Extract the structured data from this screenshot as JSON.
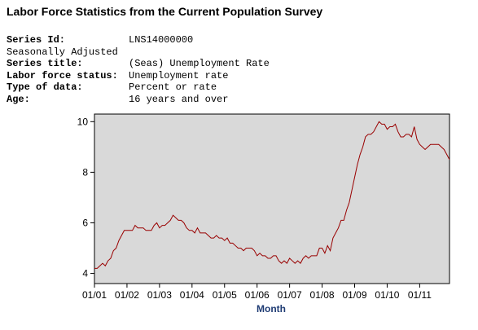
{
  "header": {
    "title": "Labor Force Statistics from the Current Population Survey"
  },
  "series_info": [
    {
      "label": "Series Id:",
      "value": "LNS14000000",
      "bold": true
    },
    {
      "label": "Seasonally Adjusted",
      "value": "",
      "bold": false
    },
    {
      "label": "Series title:",
      "value": "(Seas) Unemployment Rate",
      "bold": true
    },
    {
      "label": "Labor force status:",
      "value": "Unemployment rate",
      "bold": true
    },
    {
      "label": "Type of data:",
      "value": "Percent or rate",
      "bold": true
    },
    {
      "label": "Age:",
      "value": "16 years and over",
      "bold": true
    }
  ],
  "chart_data": {
    "type": "line",
    "title": "",
    "xlabel": "Month",
    "ylabel": "",
    "ylim": [
      3.6,
      10.3
    ],
    "yticks": [
      4,
      6,
      8,
      10
    ],
    "xticks": [
      "01/01",
      "01/02",
      "01/03",
      "01/04",
      "01/05",
      "01/06",
      "01/07",
      "01/08",
      "01/09",
      "01/10",
      "01/11"
    ],
    "x_start": "2001-01",
    "plot_background": "#d9d9d9",
    "line_color": "#990000",
    "grid": false,
    "series": [
      {
        "values": [
          4.2,
          4.2,
          4.3,
          4.4,
          4.3,
          4.5,
          4.6,
          4.9,
          5.0,
          5.3,
          5.5,
          5.7,
          5.7,
          5.7,
          5.7,
          5.9,
          5.8,
          5.8,
          5.8,
          5.7,
          5.7,
          5.7,
          5.9,
          6.0,
          5.8,
          5.9,
          5.9,
          6.0,
          6.1,
          6.3,
          6.2,
          6.1,
          6.1,
          6.0,
          5.8,
          5.7,
          5.7,
          5.6,
          5.8,
          5.6,
          5.6,
          5.6,
          5.5,
          5.4,
          5.4,
          5.5,
          5.4,
          5.4,
          5.3,
          5.4,
          5.2,
          5.2,
          5.1,
          5.0,
          5.0,
          4.9,
          5.0,
          5.0,
          5.0,
          4.9,
          4.7,
          4.8,
          4.7,
          4.7,
          4.6,
          4.6,
          4.7,
          4.7,
          4.5,
          4.4,
          4.5,
          4.4,
          4.6,
          4.5,
          4.4,
          4.5,
          4.4,
          4.6,
          4.7,
          4.6,
          4.7,
          4.7,
          4.7,
          5.0,
          5.0,
          4.8,
          5.1,
          4.9,
          5.4,
          5.6,
          5.8,
          6.1,
          6.1,
          6.5,
          6.8,
          7.3,
          7.8,
          8.3,
          8.7,
          9.0,
          9.4,
          9.5,
          9.5,
          9.6,
          9.8,
          10.0,
          9.9,
          9.9,
          9.7,
          9.8,
          9.8,
          9.9,
          9.6,
          9.4,
          9.4,
          9.5,
          9.5,
          9.4,
          9.8,
          9.3,
          9.1,
          9.0,
          8.9,
          9.0,
          9.1,
          9.1,
          9.1,
          9.1,
          9.0,
          8.9,
          8.7,
          8.5
        ]
      }
    ]
  }
}
